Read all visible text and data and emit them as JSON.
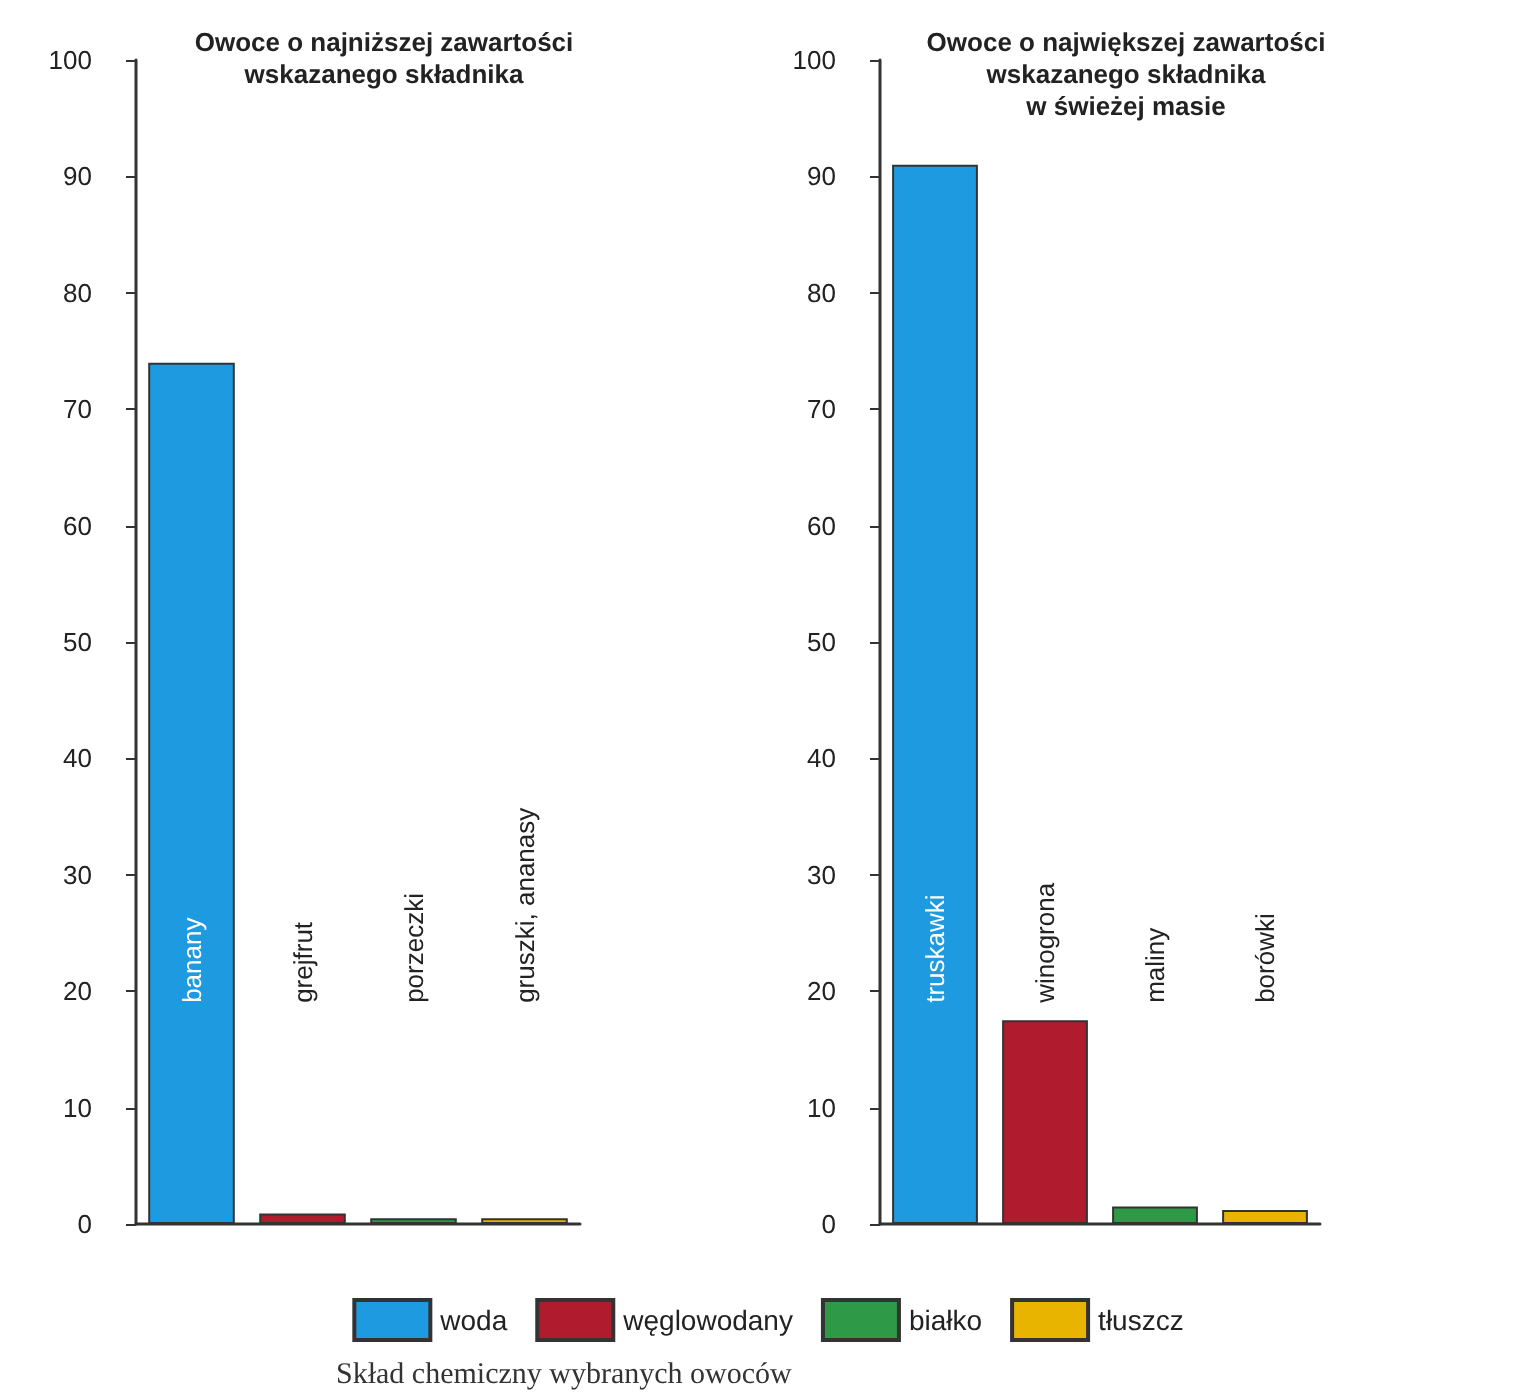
{
  "chart_data": [
    {
      "type": "bar",
      "title": "Owoce o najniższej zawartości\nwskazanego składnika",
      "categories": [
        "banany",
        "grejfrut",
        "porzeczki",
        "gruszki, ananasy"
      ],
      "series": [
        {
          "name": "woda",
          "color": "#1e9be0",
          "values": [
            74,
            null,
            null,
            null
          ]
        },
        {
          "name": "węglowodany",
          "color": "#b01c2e",
          "values": [
            null,
            0.9,
            null,
            null
          ]
        },
        {
          "name": "białko",
          "color": "#2e9a48",
          "values": [
            null,
            null,
            0.5,
            null
          ]
        },
        {
          "name": "tłuszcz",
          "color": "#e8b400",
          "values": [
            null,
            null,
            null,
            0.5
          ]
        }
      ],
      "ylim": [
        0,
        100
      ],
      "yticks": [
        0,
        10,
        20,
        30,
        40,
        50,
        60,
        70,
        80,
        90,
        100
      ],
      "grid": false,
      "legend": "bottom",
      "annotations": [
        "Skład chemiczny wybranych owoców"
      ]
    },
    {
      "type": "bar",
      "title": "Owoce o największej zawartości\nwskazanego składnika\nw świeżej masie",
      "categories": [
        "truskawki",
        "winogrona",
        "maliny",
        "borówki"
      ],
      "series": [
        {
          "name": "woda",
          "color": "#1e9be0",
          "values": [
            91,
            null,
            null,
            null
          ]
        },
        {
          "name": "węglowodany",
          "color": "#b01c2e",
          "values": [
            null,
            17.5,
            null,
            null
          ]
        },
        {
          "name": "białko",
          "color": "#2e9a48",
          "values": [
            null,
            null,
            1.5,
            null
          ]
        },
        {
          "name": "tłuszcz",
          "color": "#e8b400",
          "values": [
            null,
            null,
            null,
            1.2
          ]
        }
      ],
      "ylim": [
        0,
        100
      ],
      "yticks": [
        0,
        10,
        20,
        30,
        40,
        50,
        60,
        70,
        80,
        90,
        100
      ],
      "grid": false,
      "legend": "bottom"
    }
  ]
}
